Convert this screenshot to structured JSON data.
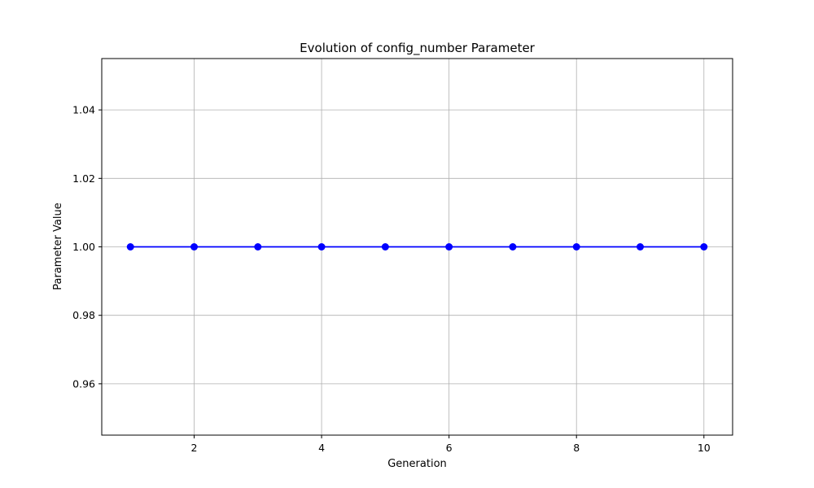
{
  "chart_data": {
    "type": "line",
    "title": "Evolution of config_number Parameter",
    "xlabel": "Generation",
    "ylabel": "Parameter Value",
    "xlim": [
      0.55,
      10.45
    ],
    "ylim": [
      0.945,
      1.055
    ],
    "xticks": [
      2,
      4,
      6,
      8,
      10
    ],
    "xtick_labels": [
      "2",
      "4",
      "6",
      "8",
      "10"
    ],
    "yticks": [
      0.96,
      0.98,
      1.0,
      1.02,
      1.04
    ],
    "ytick_labels": [
      "0.96",
      "0.98",
      "1.00",
      "1.02",
      "1.04"
    ],
    "grid": true,
    "series": [
      {
        "color": "#0000ff",
        "marker": "circle",
        "x": [
          1,
          2,
          3,
          4,
          5,
          6,
          7,
          8,
          9,
          10
        ],
        "y": [
          1.0,
          1.0,
          1.0,
          1.0,
          1.0,
          1.0,
          1.0,
          1.0,
          1.0,
          1.0
        ]
      }
    ]
  }
}
